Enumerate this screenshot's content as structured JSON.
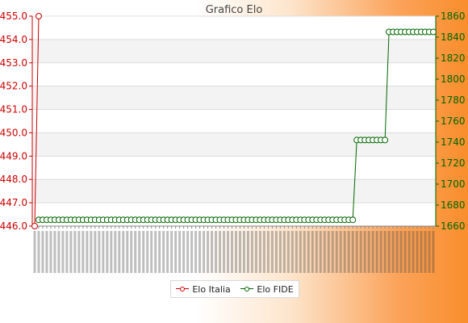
{
  "chart_data": {
    "type": "line",
    "title": "Grafico Elo",
    "left_axis": {
      "ticks": [
        "446.0",
        "447.0",
        "448.0",
        "449.0",
        "450.0",
        "451.0",
        "452.0",
        "453.0",
        "454.0",
        "455.0"
      ],
      "ylim": [
        446.0,
        455.0
      ],
      "color": "#cc0000"
    },
    "right_axis": {
      "ticks": [
        "1660",
        "1680",
        "1700",
        "1720",
        "1740",
        "1760",
        "1780",
        "1800",
        "1820",
        "1840",
        "1860"
      ],
      "ylim": [
        1660,
        1860
      ],
      "color": "#006600"
    },
    "x_count": 100,
    "x_tick_labels_note": "",
    "series": [
      {
        "name": "Elo Italia",
        "axis": "left",
        "color": "#cc0000",
        "points": [
          [
            0,
            446.0
          ],
          [
            1,
            455.0
          ]
        ]
      },
      {
        "name": "Elo FIDE",
        "axis": "right",
        "color": "#006600",
        "segments": [
          {
            "from": 1,
            "to": 79,
            "value": 1666
          },
          {
            "from": 80,
            "to": 87,
            "value": 1742
          },
          {
            "from": 88,
            "to": 99,
            "value": 1845
          }
        ]
      }
    ],
    "grid": true,
    "legend_position": "bottom"
  },
  "legend": {
    "italia": "Elo Italia",
    "fide": "Elo FIDE"
  }
}
